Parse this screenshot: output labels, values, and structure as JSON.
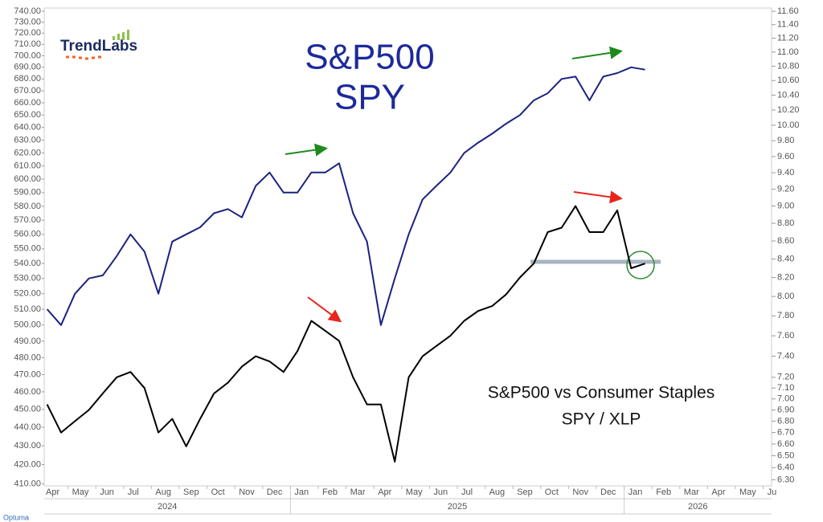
{
  "chart_data": {
    "type": "line",
    "log_scale": true,
    "title": "S&P500",
    "subtitle": "S&P500 vs Consumer Staples",
    "logo": "TrendLabs",
    "source": "Optuma",
    "months": [
      "Apr",
      "May",
      "Jun",
      "Jul",
      "Aug",
      "Sep",
      "Oct",
      "Nov",
      "Dec",
      "Jan",
      "Feb",
      "Mar",
      "Apr",
      "May",
      "Jun",
      "Jul",
      "Aug",
      "Sep",
      "Oct",
      "Nov",
      "Dec",
      "Jan",
      "Feb",
      "Mar",
      "Apr",
      "May",
      "Ju"
    ],
    "years": [
      "2024",
      "2025",
      "2026"
    ],
    "x": [
      "2024-04",
      "2024-04",
      "2024-05",
      "2024-05",
      "2024-06",
      "2024-06",
      "2024-07",
      "2024-07",
      "2024-08",
      "2024-08",
      "2024-09",
      "2024-09",
      "2024-10",
      "2024-10",
      "2024-11",
      "2024-11",
      "2024-12",
      "2024-12",
      "2025-01",
      "2025-01",
      "2025-02",
      "2025-02",
      "2025-03",
      "2025-03",
      "2025-04",
      "2025-04",
      "2025-05",
      "2025-05",
      "2025-06",
      "2025-06",
      "2025-07",
      "2025-07",
      "2025-08",
      "2025-08",
      "2025-09",
      "2025-09",
      "2025-10",
      "2025-10",
      "2025-11",
      "2025-11",
      "2025-12",
      "2025-12",
      "2026-01",
      "2026-01"
    ],
    "ylim": [
      409,
      743
    ],
    "yticks": [
      {
        "value": 410,
        "label": "410.00"
      },
      {
        "value": 420,
        "label": "420.00"
      },
      {
        "value": 430,
        "label": "430.00"
      },
      {
        "value": 440,
        "label": "440.00"
      },
      {
        "value": 450,
        "label": "450.00"
      },
      {
        "value": 460,
        "label": "460.00"
      },
      {
        "value": 470,
        "label": "470.00"
      },
      {
        "value": 480,
        "label": "480.00"
      },
      {
        "value": 490,
        "label": "490.00"
      },
      {
        "value": 500,
        "label": "500.00"
      },
      {
        "value": 510,
        "label": "510.00"
      },
      {
        "value": 520,
        "label": "520.00"
      },
      {
        "value": 530,
        "label": "530.00"
      },
      {
        "value": 540,
        "label": "540.00"
      },
      {
        "value": 550,
        "label": "550.00"
      },
      {
        "value": 560,
        "label": "560.00"
      },
      {
        "value": 570,
        "label": "570.00"
      },
      {
        "value": 580,
        "label": "580.00"
      },
      {
        "value": 590,
        "label": "590.00"
      },
      {
        "value": 600,
        "label": "600.00"
      },
      {
        "value": 610,
        "label": "610.00"
      },
      {
        "value": 620,
        "label": "620.00"
      },
      {
        "value": 630,
        "label": "630.00"
      },
      {
        "value": 640,
        "label": "640.00"
      },
      {
        "value": 650,
        "label": "650.00"
      },
      {
        "value": 660,
        "label": "660.00"
      },
      {
        "value": 670,
        "label": "670.00"
      },
      {
        "value": 680,
        "label": "680.00"
      },
      {
        "value": 690,
        "label": "690.00"
      },
      {
        "value": 700,
        "label": "700.00"
      },
      {
        "value": 710,
        "label": "710.00"
      },
      {
        "value": 720,
        "label": "720.00"
      },
      {
        "value": 730,
        "label": "730.00"
      },
      {
        "value": 740,
        "label": "740.00"
      }
    ],
    "y2lim": [
      6.25,
      11.65
    ],
    "y2ticks": [
      {
        "value": 6.3,
        "label": "6.30"
      },
      {
        "value": 6.4,
        "label": "6.40"
      },
      {
        "value": 6.5,
        "label": "6.50"
      },
      {
        "value": 6.6,
        "label": "6.60"
      },
      {
        "value": 6.7,
        "label": "6.70"
      },
      {
        "value": 6.8,
        "label": "6.80"
      },
      {
        "value": 6.9,
        "label": "6.90"
      },
      {
        "value": 7,
        "label": "7.00"
      },
      {
        "value": 7.1,
        "label": "7.10"
      },
      {
        "value": 7.2,
        "label": "7.20"
      },
      {
        "value": 7.4,
        "label": "7.40"
      },
      {
        "value": 7.6,
        "label": "7.60"
      },
      {
        "value": 7.8,
        "label": "7.80"
      },
      {
        "value": 8,
        "label": "8.00"
      },
      {
        "value": 8.2,
        "label": "8.20"
      },
      {
        "value": 8.4,
        "label": "8.40"
      },
      {
        "value": 8.6,
        "label": "8.60"
      },
      {
        "value": 8.8,
        "label": "8.80"
      },
      {
        "value": 9,
        "label": "9.00"
      },
      {
        "value": 9.2,
        "label": "9.20"
      },
      {
        "value": 9.4,
        "label": "9.40"
      },
      {
        "value": 9.6,
        "label": "9.60"
      },
      {
        "value": 9.8,
        "label": "9.80"
      },
      {
        "value": 10,
        "label": "10.00"
      },
      {
        "value": 10.2,
        "label": "10.20"
      },
      {
        "value": 10.4,
        "label": "10.40"
      },
      {
        "value": 10.6,
        "label": "10.60"
      },
      {
        "value": 10.8,
        "label": "10.80"
      },
      {
        "value": 11,
        "label": "11.00"
      },
      {
        "value": 11.2,
        "label": "11.20"
      },
      {
        "value": 11.4,
        "label": "11.40"
      },
      {
        "value": 11.6,
        "label": "11.60"
      }
    ],
    "series": [
      {
        "name": "SPY",
        "color": "#1a237e",
        "values": [
          510,
          500,
          520,
          530,
          532,
          545,
          560,
          548,
          520,
          555,
          560,
          565,
          575,
          578,
          572,
          595,
          605,
          590,
          590,
          605,
          605,
          612,
          575,
          555,
          500,
          530,
          560,
          585,
          595,
          605,
          620,
          628,
          635,
          643,
          650,
          662,
          668,
          680,
          682,
          662,
          682,
          685,
          690,
          688
        ]
      },
      {
        "name": "SPY / XLP",
        "color": "#000000",
        "axis": "y2",
        "values": [
          6.95,
          6.7,
          6.8,
          6.9,
          7.05,
          7.2,
          7.25,
          7.1,
          6.7,
          6.82,
          6.58,
          6.82,
          7.05,
          7.15,
          7.3,
          7.4,
          7.35,
          7.25,
          7.45,
          7.75,
          7.65,
          7.55,
          7.2,
          6.95,
          6.95,
          6.45,
          7.2,
          7.4,
          7.5,
          7.6,
          7.75,
          7.85,
          7.9,
          8.02,
          8.2,
          8.35,
          8.7,
          8.75,
          9.0,
          8.7,
          8.7,
          8.95,
          8.3,
          8.35
        ]
      }
    ]
  }
}
